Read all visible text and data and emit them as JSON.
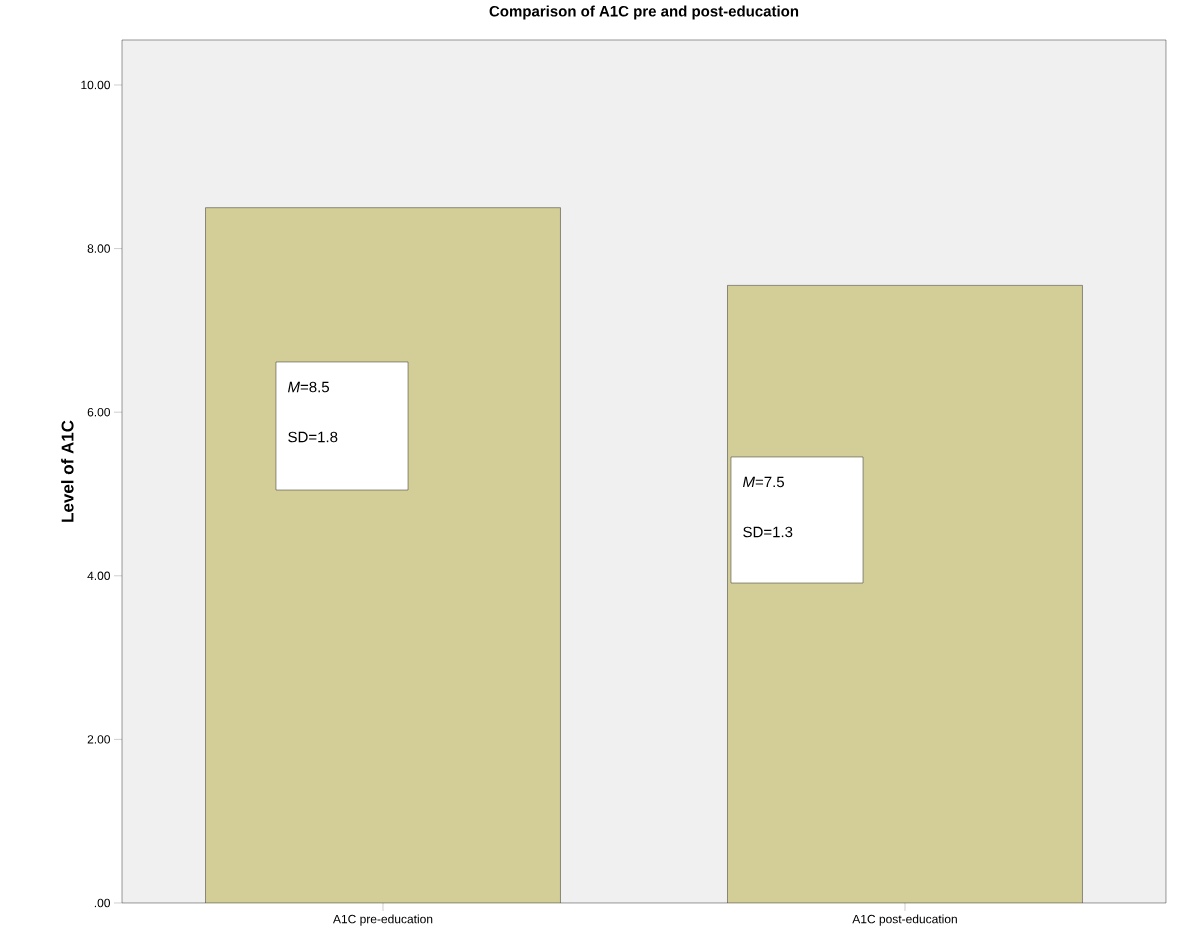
{
  "chart_data": {
    "type": "bar",
    "title": "Comparison of A1C pre and post-education",
    "ylabel": "Level of A1C",
    "categories": [
      "A1C pre-education",
      "A1C post-education"
    ],
    "values": [
      8.5,
      7.55
    ],
    "color": "#d3ce97",
    "ylim": [
      0,
      10.55
    ],
    "yticks": [
      {
        "value": 0,
        "label": ".00"
      },
      {
        "value": 2,
        "label": "2.00"
      },
      {
        "value": 4,
        "label": "4.00"
      },
      {
        "value": 6,
        "label": "6.00"
      },
      {
        "value": 8,
        "label": "8.00"
      },
      {
        "value": 10,
        "label": "10.00"
      }
    ],
    "grid": false,
    "annotations": [
      "*M*=8.5",
      "SD=1.8",
      "*M*=7.5",
      "SD=1.3"
    ]
  }
}
